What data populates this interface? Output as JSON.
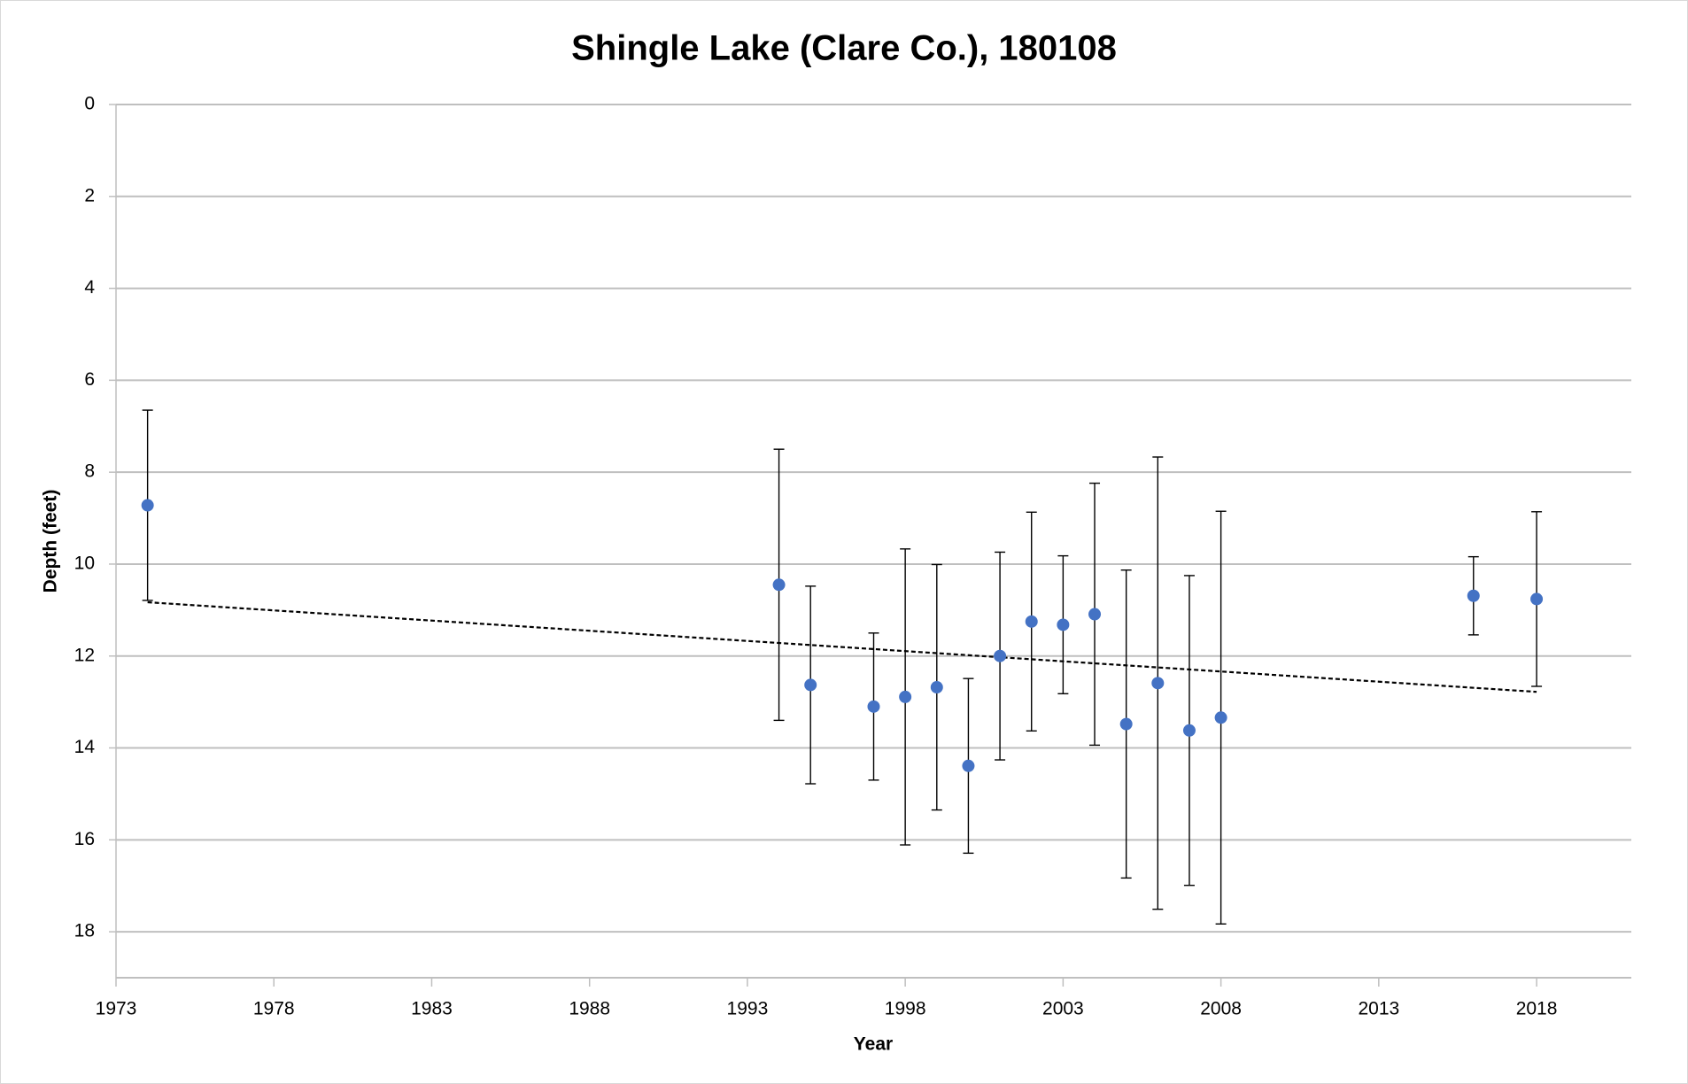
{
  "chart_data": {
    "type": "scatter",
    "title": "Shingle Lake (Clare Co.), 180108",
    "x_label": "Year",
    "y_label": "Depth (feet)",
    "x": [
      1974,
      1994,
      1995,
      1997,
      1998,
      1999,
      2000,
      2001,
      2002,
      2003,
      2004,
      2005,
      2006,
      2007,
      2008,
      2016,
      2018
    ],
    "values": [
      8.72,
      10.45,
      12.63,
      13.1,
      12.89,
      12.68,
      14.39,
      12.0,
      11.25,
      11.32,
      11.09,
      13.48,
      12.59,
      13.62,
      13.34,
      10.69,
      10.76
    ],
    "errors": [
      2.07,
      2.95,
      2.15,
      1.6,
      3.22,
      2.67,
      1.9,
      2.26,
      2.38,
      1.5,
      2.85,
      3.35,
      4.92,
      3.37,
      4.49,
      0.85,
      1.9
    ],
    "color": "#4472c4",
    "trendline": {
      "x": [
        1974,
        2018
      ],
      "values": [
        10.83,
        12.78
      ],
      "color": "#000000"
    },
    "xlim": [
      1973,
      2021
    ],
    "xticks": [
      1973,
      1978,
      1983,
      1988,
      1993,
      1998,
      2003,
      2008,
      2013,
      2018
    ],
    "ylim": [
      0,
      19
    ],
    "yticks": [
      0,
      2,
      4,
      6,
      8,
      10,
      12,
      14,
      16,
      18
    ],
    "y_inverted": true,
    "grid": true
  }
}
